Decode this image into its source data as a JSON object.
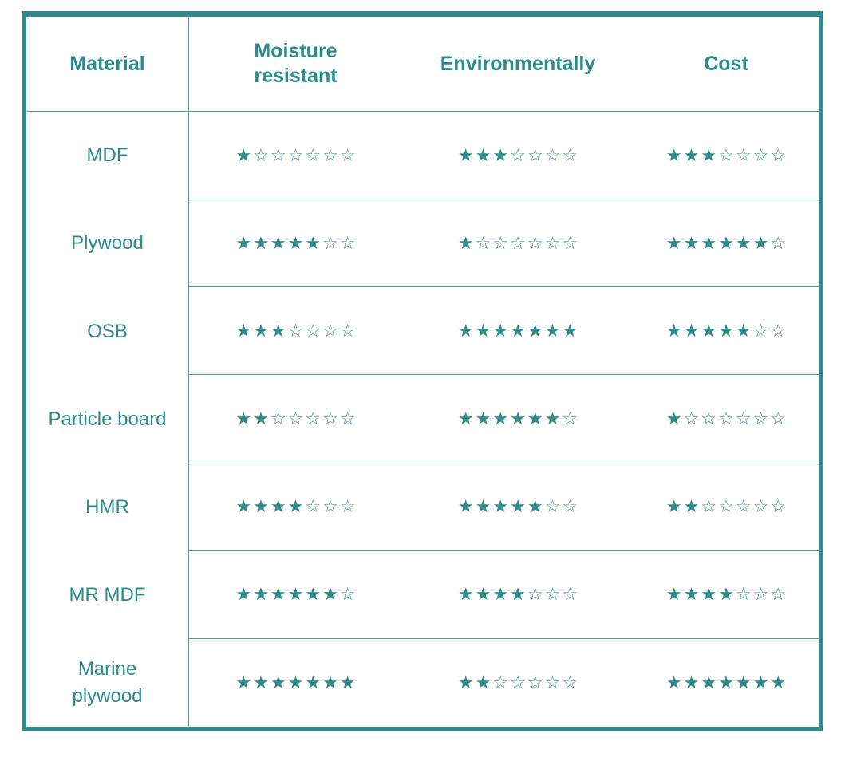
{
  "colors": {
    "teal_text": "#2b8a8e",
    "star_filled": "#2e8b8d",
    "star_empty_outline": "#3f979b",
    "outer_border": "#2e8b8e",
    "divider": "#4a9da1",
    "background": "#ffffff"
  },
  "table": {
    "columns": [
      "Material",
      "Moisture resistant",
      "Environmentally",
      "Cost"
    ],
    "max_stars": 7,
    "rows": [
      {
        "material": "MDF",
        "ratings": [
          1,
          3,
          3
        ]
      },
      {
        "material": "Plywood",
        "ratings": [
          5,
          1,
          6
        ]
      },
      {
        "material": "OSB",
        "ratings": [
          3,
          7,
          5
        ]
      },
      {
        "material": "Particle board",
        "ratings": [
          2,
          6,
          1
        ]
      },
      {
        "material": "HMR",
        "ratings": [
          4,
          5,
          2
        ]
      },
      {
        "material": "MR MDF",
        "ratings": [
          6,
          4,
          4
        ]
      },
      {
        "material": "Marine plywood",
        "ratings": [
          7,
          2,
          7
        ]
      }
    ]
  },
  "chart_data": {
    "type": "table",
    "title": "",
    "categories": [
      "MDF",
      "Plywood",
      "OSB",
      "Particle board",
      "HMR",
      "MR MDF",
      "Marine plywood"
    ],
    "series": [
      {
        "name": "Moisture resistant",
        "values": [
          1,
          5,
          3,
          2,
          4,
          6,
          7
        ]
      },
      {
        "name": "Environmentally",
        "values": [
          3,
          1,
          7,
          6,
          5,
          4,
          2
        ]
      },
      {
        "name": "Cost",
        "values": [
          3,
          6,
          5,
          1,
          2,
          4,
          7
        ]
      }
    ],
    "value_range": [
      0,
      7
    ],
    "value_unit": "stars"
  }
}
